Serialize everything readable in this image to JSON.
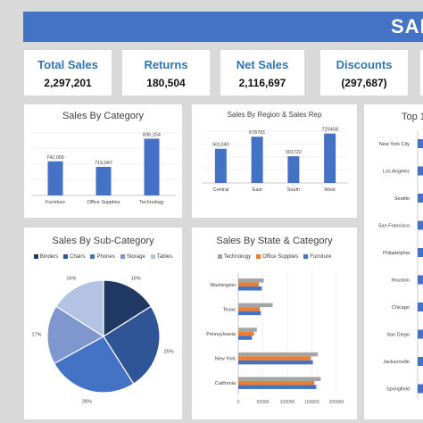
{
  "header": {
    "title": "SAL"
  },
  "kpis": [
    {
      "label": "Total Sales",
      "value": "2,297,201"
    },
    {
      "label": "Returns",
      "value": "180,504"
    },
    {
      "label": "Net Sales",
      "value": "2,116,697"
    },
    {
      "label": "Discounts",
      "value": "(297,687)"
    }
  ],
  "colors": {
    "primary": "#4472c4",
    "orange": "#ed7d31",
    "gray": "#a5a5a5",
    "background": "#d9d9d9"
  },
  "chart_data": [
    {
      "type": "bar",
      "title": "Sales By Category",
      "categories": [
        "Furniture",
        "Office Supplies",
        "Technology"
      ],
      "values": [
        742000,
        719047,
        836154
      ],
      "value_labels": [
        "742,000",
        "719,047",
        "836,154"
      ],
      "ylim": [
        600000,
        860000
      ]
    },
    {
      "type": "bar",
      "title": "Sales By Region & Sales Rep",
      "categories": [
        "Central",
        "East",
        "South",
        "West"
      ],
      "values": [
        501240,
        678781,
        391722,
        725458
      ],
      "value_labels": [
        "501240",
        "678781",
        "391722",
        "725458"
      ],
      "ylim": [
        0,
        760000
      ]
    },
    {
      "type": "pie",
      "title": "Sales By Sub-Category",
      "legend": [
        "Binders",
        "Chairs",
        "Phones",
        "Storage",
        "Tables"
      ],
      "values": [
        16,
        25,
        26,
        17,
        16
      ],
      "value_labels": [
        "16%",
        "25%",
        "26%",
        "17%",
        "16%"
      ],
      "colors": [
        "#203864",
        "#2f5597",
        "#4472c4",
        "#7f96cf",
        "#b4c2e4"
      ]
    },
    {
      "type": "bar",
      "title": "Sales By State & Category",
      "legend": [
        "Technology",
        "Office Supplies",
        "Furniture"
      ],
      "categories": [
        "Washington",
        "Texas",
        "Pennsylvania",
        "New York",
        "California"
      ],
      "series": [
        {
          "name": "Technology",
          "values": [
            52000,
            70000,
            38000,
            162000,
            168000
          ]
        },
        {
          "name": "Office Supplies",
          "values": [
            42000,
            44000,
            32000,
            148000,
            155000
          ]
        },
        {
          "name": "Furniture",
          "values": [
            48000,
            46000,
            28000,
            152000,
            159000
          ]
        }
      ],
      "xticks": [
        "0",
        "50000",
        "100000",
        "150000",
        "200000"
      ],
      "xlim": [
        0,
        200000
      ]
    },
    {
      "type": "bar",
      "title": "Top 1",
      "categories": [
        "New York City",
        "Los Angeles",
        "Seattle",
        "San Francisco",
        "Philadelphia",
        "Houston",
        "Chicago",
        "San Diego",
        "Jacksonville",
        "Springfield"
      ]
    }
  ]
}
